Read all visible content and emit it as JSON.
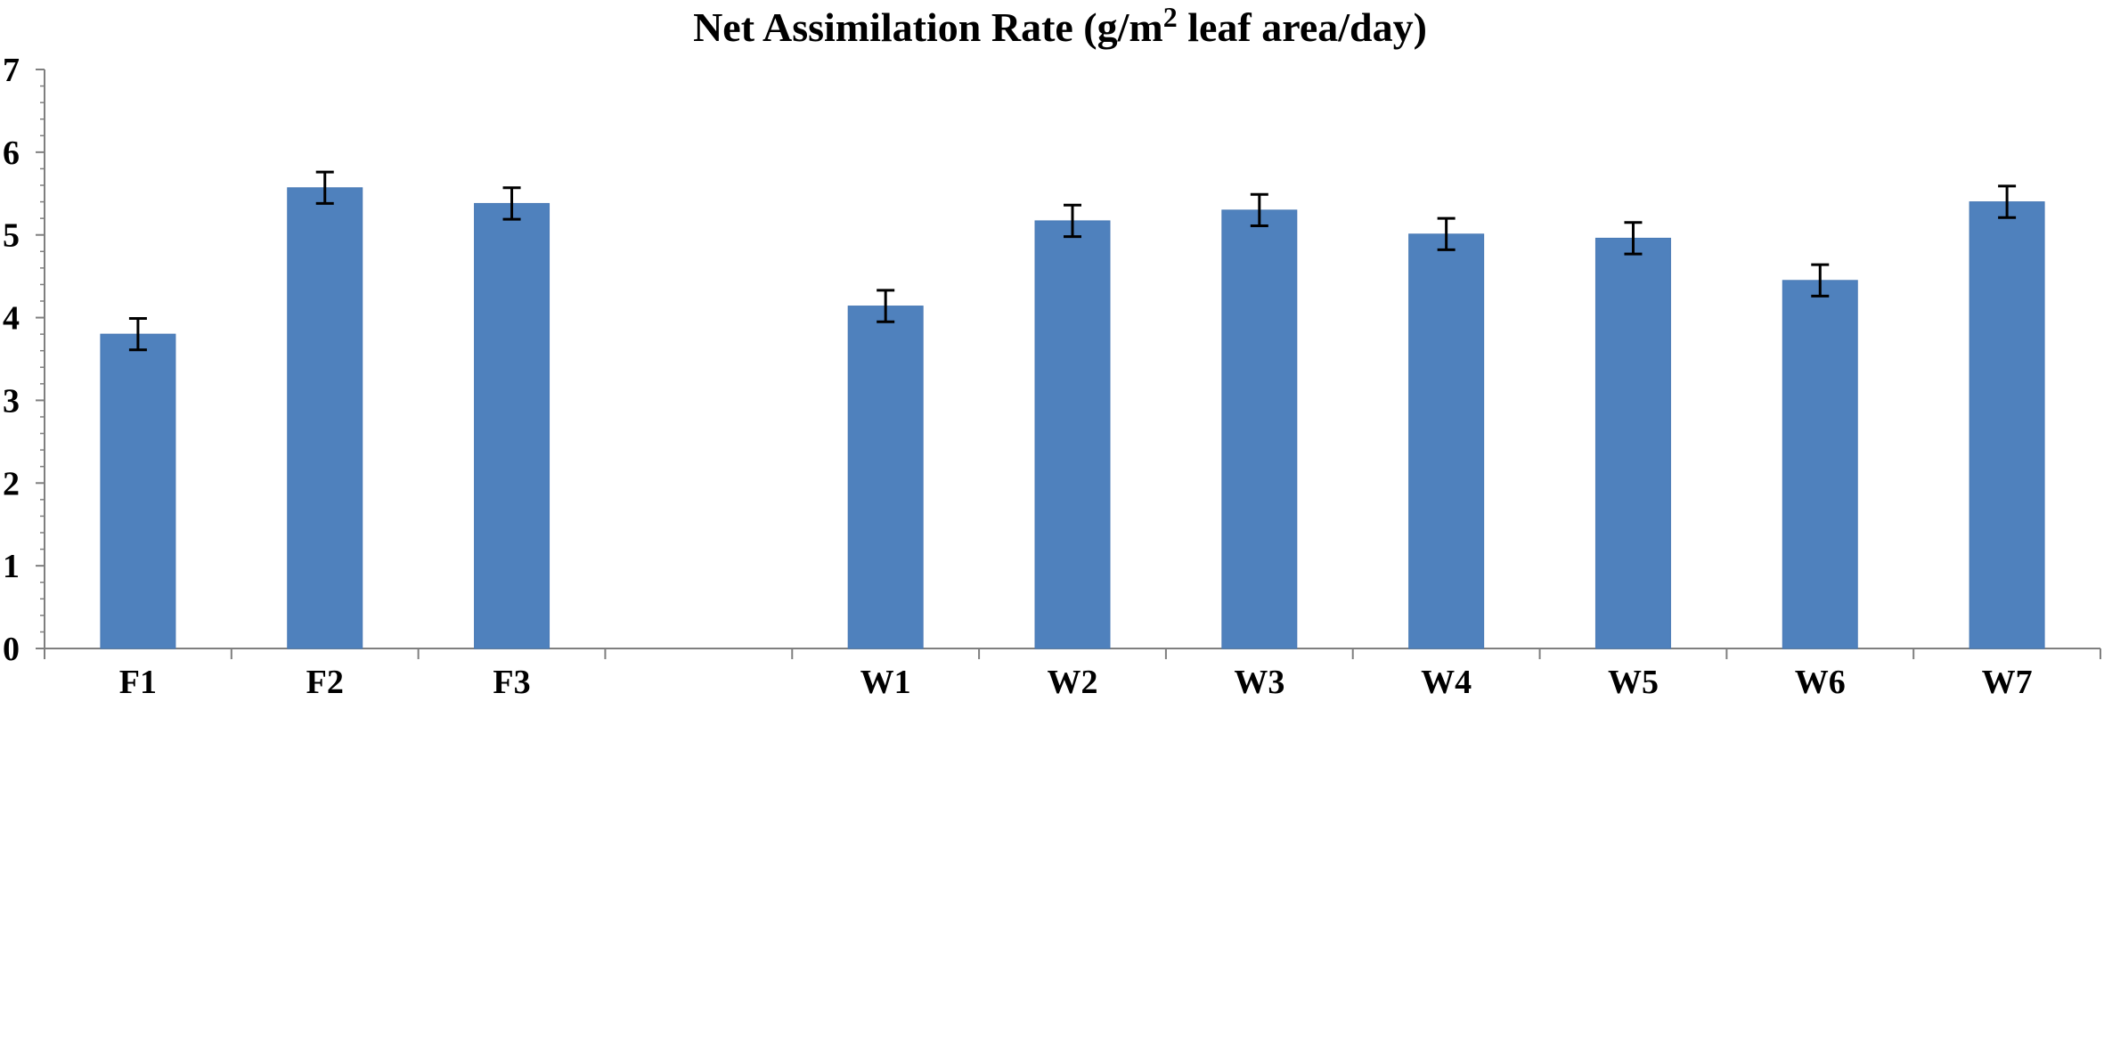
{
  "chart_data": {
    "type": "bar",
    "title": {
      "prefix": "Net Assimilation Rate (g/m",
      "superscript": "2",
      "suffix": " leaf area/day)"
    },
    "xlabel": "",
    "ylabel": "",
    "categories": [
      "F1",
      "F2",
      "F3",
      "",
      "W1",
      "W2",
      "W3",
      "W4",
      "W5",
      "W6",
      "W7"
    ],
    "values": [
      3.8,
      5.57,
      5.38,
      null,
      4.14,
      5.17,
      5.3,
      5.01,
      4.96,
      4.45,
      5.4
    ],
    "error": [
      0.19,
      0.19,
      0.19,
      null,
      0.19,
      0.19,
      0.19,
      0.19,
      0.19,
      0.19,
      0.19
    ],
    "ylim": [
      0,
      7
    ],
    "yticks": [
      "0",
      "1",
      "2",
      "3",
      "4",
      "5",
      "6",
      "7"
    ],
    "grid": false,
    "legend": "none",
    "colors": {
      "bar": "#4F81BD",
      "bar_edge": "#4A7AB5",
      "axis": "#7F7F7F",
      "error": "#000000",
      "text": "#000000"
    }
  }
}
